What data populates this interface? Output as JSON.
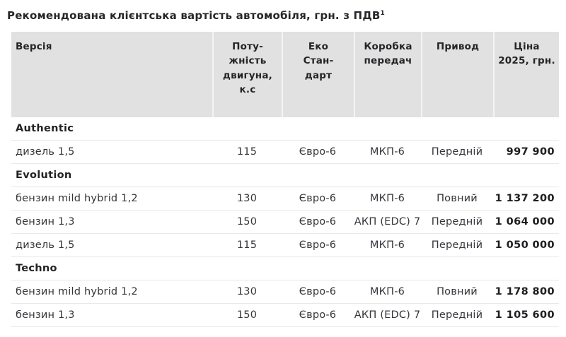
{
  "title": {
    "text": "Рекомендована клієнтська вартість автомобіля, грн. з ПДВ",
    "superscript": "1"
  },
  "colors": {
    "header_background": "#e1e1e1",
    "row_divider": "#e9e9e9",
    "text": "#2b2b30"
  },
  "table": {
    "columns": [
      {
        "key": "version",
        "label": "Версія"
      },
      {
        "key": "power",
        "label": "Поту-\nжність\nдвигуна,\nк.с"
      },
      {
        "key": "eco",
        "label": "Еко\nСтан-\nдарт"
      },
      {
        "key": "gearbox",
        "label": "Коробка\nпередач"
      },
      {
        "key": "drive",
        "label": "Привод"
      },
      {
        "key": "price",
        "label": "Ціна\n2025, грн."
      }
    ],
    "rows": [
      {
        "type": "section",
        "label": "Authentic"
      },
      {
        "type": "data",
        "version": "дизель 1,5",
        "power": "115",
        "eco": "Євро-6",
        "gearbox": "МКП-6",
        "drive": "Передній",
        "price": "997 900"
      },
      {
        "type": "section",
        "label": "Evolution"
      },
      {
        "type": "data",
        "version": "бензин mild hybrid 1,2",
        "power": "130",
        "eco": "Євро-6",
        "gearbox": "МКП-6",
        "drive": "Повний",
        "price": "1 137 200"
      },
      {
        "type": "data",
        "version": "бензин 1,3",
        "power": "150",
        "eco": "Євро-6",
        "gearbox": "АКП (EDC) 7",
        "drive": "Передній",
        "price": "1 064 000"
      },
      {
        "type": "data",
        "version": "дизель 1,5",
        "power": "115",
        "eco": "Євро-6",
        "gearbox": "МКП-6",
        "drive": "Передній",
        "price": "1 050 000"
      },
      {
        "type": "section",
        "label": "Techno"
      },
      {
        "type": "data",
        "version": "бензин mild hybrid 1,2",
        "power": "130",
        "eco": "Євро-6",
        "gearbox": "МКП-6",
        "drive": "Повний",
        "price": "1 178 800"
      },
      {
        "type": "data",
        "version": "бензин 1,3",
        "power": "150",
        "eco": "Євро-6",
        "gearbox": "АКП (EDC) 7",
        "drive": "Передній",
        "price": "1 105 600"
      }
    ]
  }
}
